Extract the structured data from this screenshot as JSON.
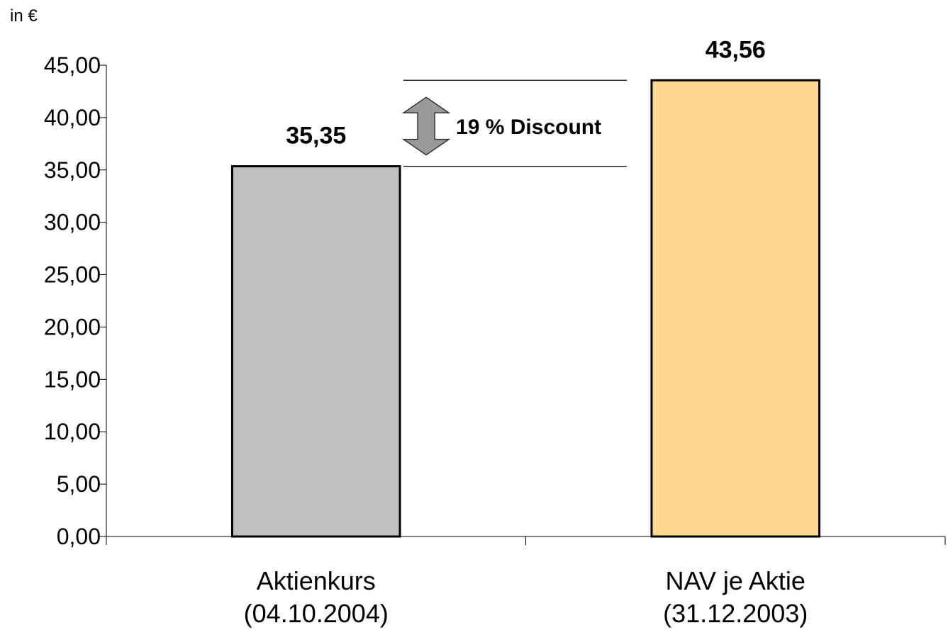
{
  "chart_data": {
    "type": "bar",
    "unit_label": "in €",
    "categories": [
      [
        "Aktienkurs",
        "(04.10.2004)"
      ],
      [
        "NAV je Aktie",
        "(31.12.2003)"
      ]
    ],
    "values": [
      35.35,
      43.56
    ],
    "value_labels": [
      "35,35",
      "43,56"
    ],
    "bar_colors": [
      "#c0c0c0",
      "#fdd88e"
    ],
    "ylim": [
      0,
      45
    ],
    "yticks": [
      0,
      5,
      10,
      15,
      20,
      25,
      30,
      35,
      40,
      45
    ],
    "ytick_labels": [
      "0,00",
      "5,00",
      "10,00",
      "15,00",
      "20,00",
      "25,00",
      "30,00",
      "35,00",
      "40,00",
      "45,00"
    ],
    "annotation": {
      "text": "19 % Discount",
      "from_value": 35.35,
      "to_value": 43.56,
      "arrow_color": "#999999"
    }
  }
}
